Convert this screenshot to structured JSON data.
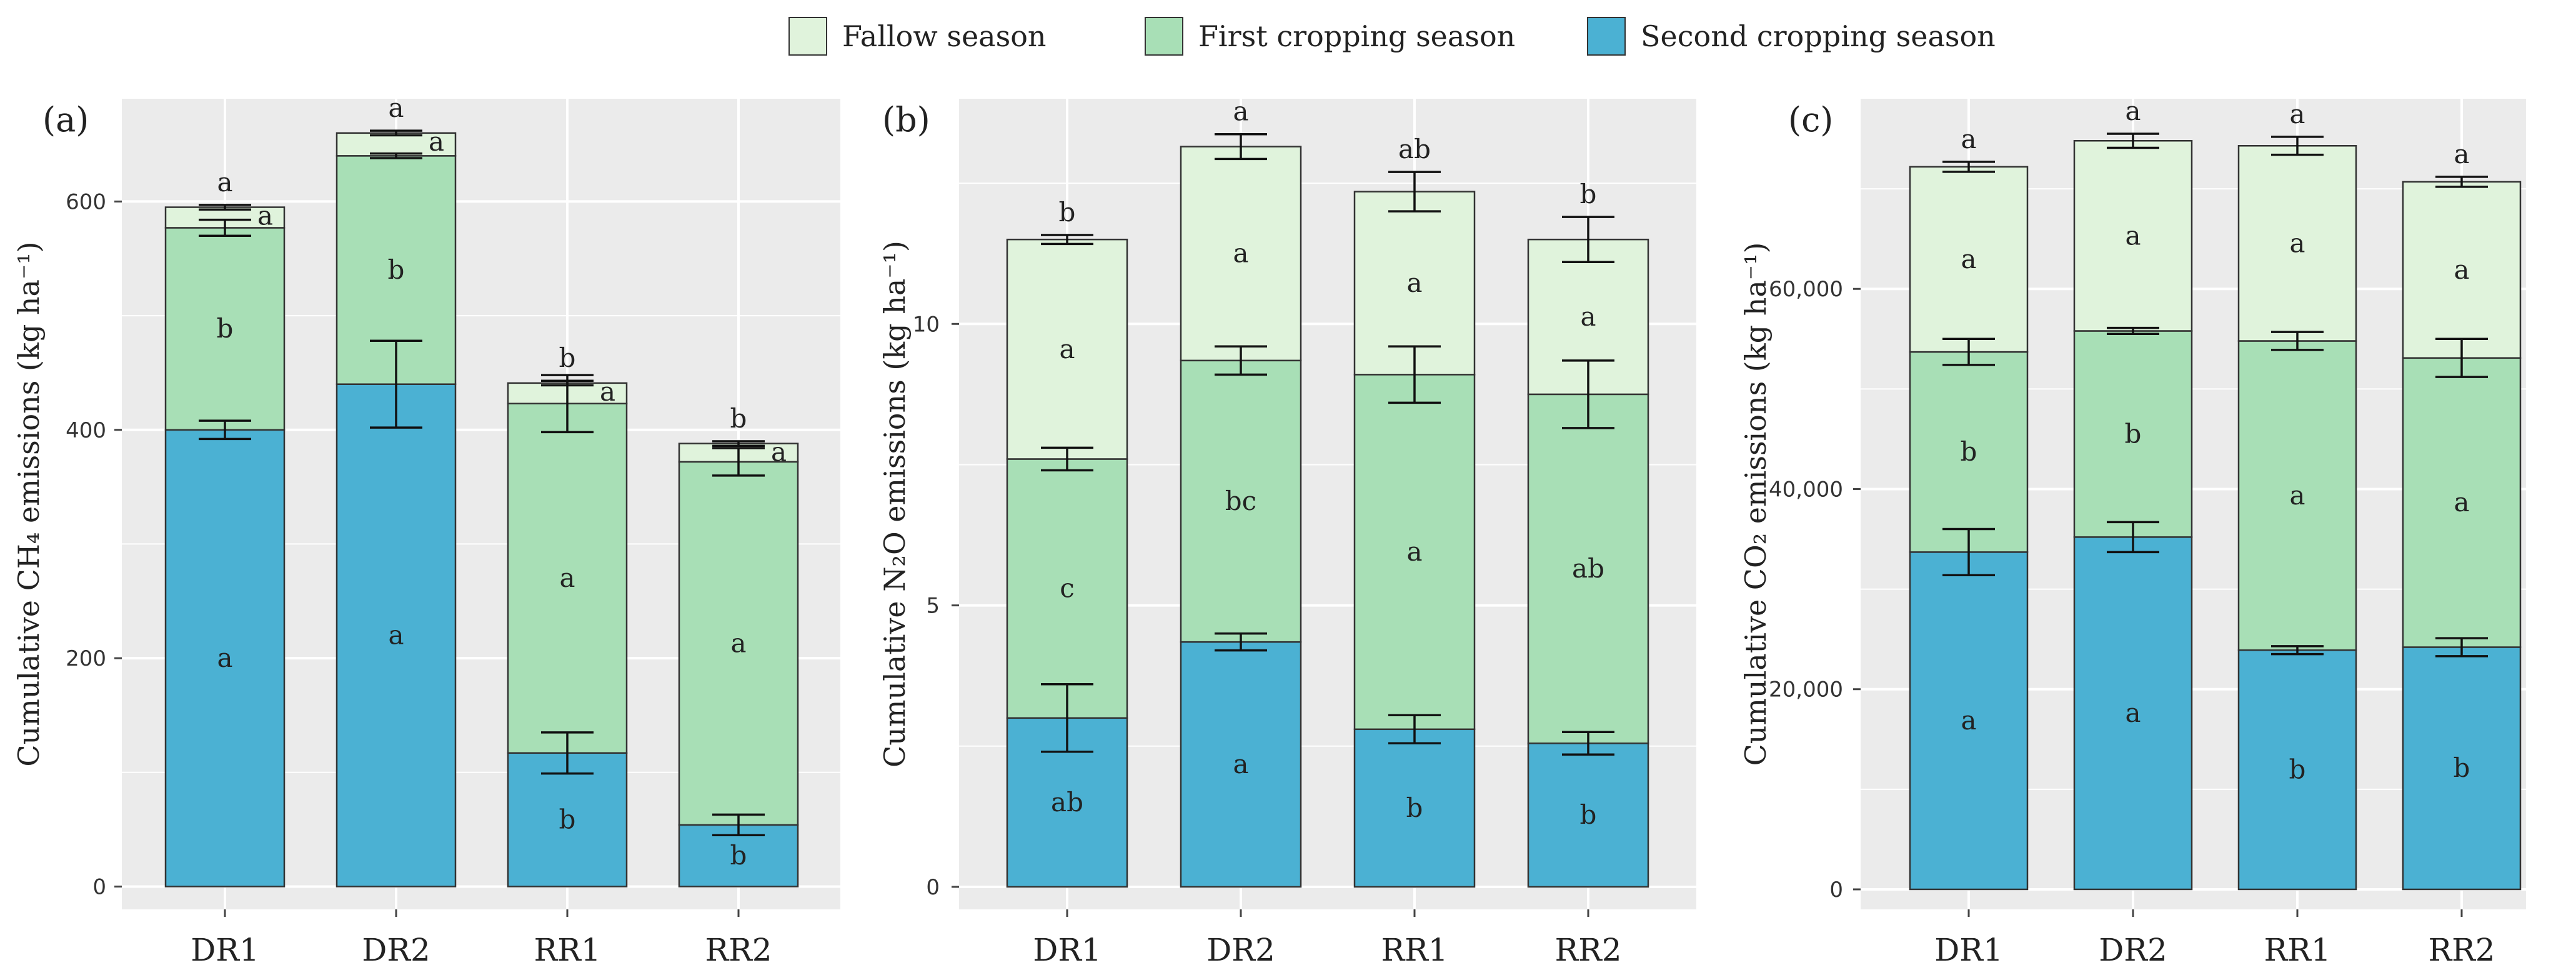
{
  "legend": {
    "items": [
      {
        "label": "Fallow season",
        "color": "#e0f3dc"
      },
      {
        "label": "First cropping season",
        "color": "#a8dfb6"
      },
      {
        "label": "Second cropping season",
        "color": "#4bb1d3"
      }
    ]
  },
  "colors": {
    "panel_bg": "#ebebeb",
    "gridline": "#ffffff",
    "bar_outline": "#333333",
    "fallow": "#e0f3dc",
    "first": "#a8dfb6",
    "second": "#4bb1d3"
  },
  "chart_data": [
    {
      "type": "bar",
      "stacked": true,
      "panel": "(a)",
      "ylabel": "Cumulative CH₄ emissions (kg ha⁻¹)",
      "categories": [
        "DR1",
        "DR2",
        "RR1",
        "RR2"
      ],
      "ylim": [
        -20,
        690
      ],
      "yticks": [
        0,
        200,
        400,
        600
      ],
      "ytick_labels": [
        "0",
        "200",
        "400",
        "600"
      ],
      "series": [
        {
          "name": "Second cropping season",
          "values": [
            400,
            440,
            117,
            54
          ],
          "errors": [
            8,
            38,
            18,
            9
          ],
          "letters": [
            "a",
            "a",
            "b",
            "b"
          ]
        },
        {
          "name": "First cropping season",
          "values": [
            177,
            200,
            306,
            318
          ],
          "errors": [
            7,
            2,
            25,
            12
          ],
          "letters": [
            "b",
            "b",
            "a",
            "a"
          ]
        },
        {
          "name": "Fallow season",
          "values": [
            18,
            20,
            18,
            16
          ],
          "errors": [
            2,
            2,
            2,
            2
          ],
          "letters": [
            "a",
            "a",
            "a",
            "a"
          ]
        }
      ],
      "total_letters": [
        "a",
        "a",
        "b",
        "b"
      ]
    },
    {
      "type": "bar",
      "stacked": true,
      "panel": "(b)",
      "ylabel": "Cumulative N₂O emissions (kg ha⁻¹)",
      "categories": [
        "DR1",
        "DR2",
        "RR1",
        "RR2"
      ],
      "ylim": [
        -0.4,
        14.0
      ],
      "yticks": [
        0,
        5,
        10
      ],
      "ytick_labels": [
        "0",
        "5",
        "10"
      ],
      "series": [
        {
          "name": "Second cropping season",
          "values": [
            3.0,
            4.35,
            2.8,
            2.55
          ],
          "errors": [
            0.6,
            0.15,
            0.25,
            0.2
          ],
          "letters": [
            "ab",
            "a",
            "b",
            "b"
          ]
        },
        {
          "name": "First cropping season",
          "values": [
            4.6,
            5.0,
            6.3,
            6.2
          ],
          "errors": [
            0.2,
            0.25,
            0.5,
            0.6
          ],
          "letters": [
            "c",
            "bc",
            "a",
            "ab"
          ]
        },
        {
          "name": "Fallow season",
          "values": [
            3.9,
            3.8,
            3.25,
            2.75
          ],
          "errors": [
            0.08,
            0.22,
            0.35,
            0.4
          ],
          "letters": [
            "a",
            "a",
            "a",
            "a"
          ]
        }
      ],
      "total_letters": [
        "b",
        "a",
        "ab",
        "b"
      ]
    },
    {
      "type": "bar",
      "stacked": true,
      "panel": "(c)",
      "ylabel": "Cumulative CO₂ emissions (kg ha⁻¹)",
      "categories": [
        "DR1",
        "DR2",
        "RR1",
        "RR2"
      ],
      "ylim": [
        -2000,
        79000
      ],
      "yticks": [
        0,
        20000,
        40000,
        60000
      ],
      "ytick_labels": [
        "0",
        "20,000",
        "40,000",
        "60,000"
      ],
      "series": [
        {
          "name": "Second cropping season",
          "values": [
            33700,
            35200,
            23900,
            24200
          ],
          "errors": [
            2300,
            1500,
            400,
            900
          ],
          "letters": [
            "a",
            "a",
            "b",
            "b"
          ]
        },
        {
          "name": "First cropping season",
          "values": [
            20000,
            20600,
            30900,
            28900
          ],
          "errors": [
            1300,
            300,
            900,
            1900
          ],
          "letters": [
            "b",
            "b",
            "a",
            "a"
          ]
        },
        {
          "name": "Fallow season",
          "values": [
            18500,
            19000,
            19500,
            17600
          ],
          "errors": [
            500,
            700,
            900,
            500
          ],
          "letters": [
            "a",
            "a",
            "a",
            "a"
          ]
        }
      ],
      "total_letters": [
        "a",
        "a",
        "a",
        "a"
      ]
    }
  ]
}
